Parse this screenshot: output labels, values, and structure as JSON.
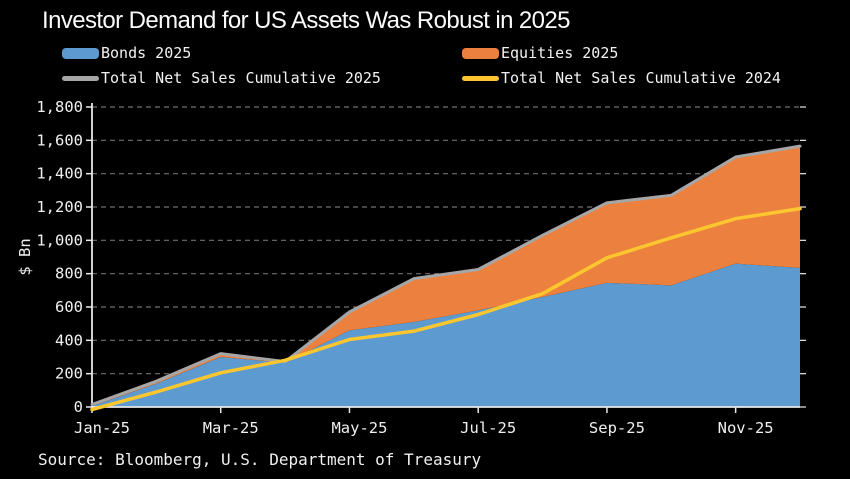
{
  "title": "Investor Demand for US Assets Was Robust in 2025",
  "source": "Source: Bloomberg, U.S. Department of Treasury",
  "colors": {
    "background": "#000000",
    "bonds": "#5C9AD0",
    "equities": "#EC813F",
    "total_2025_line": "#A6A6A6",
    "total_2024_line": "#FCC62E",
    "grid": "#6f6f6f",
    "axis": "#e8e8e8",
    "text": "#f0f0f0"
  },
  "legend": {
    "items": [
      {
        "label": "Bonds 2025",
        "color": "#5C9AD0",
        "swatch": "area"
      },
      {
        "label": "Equities 2025",
        "color": "#EC813F",
        "swatch": "area"
      },
      {
        "label": "Total Net Sales Cumulative 2025",
        "color": "#A6A6A6",
        "swatch": "line"
      },
      {
        "label": "Total Net Sales Cumulative 2024",
        "color": "#FCC62E",
        "swatch": "line"
      }
    ]
  },
  "chart_data": {
    "type": "area",
    "title": "Investor Demand for US Assets Was Robust in 2025",
    "xlabel": "",
    "ylabel": "$ Bn",
    "ylim": [
      0,
      1800
    ],
    "y_tick_step": 200,
    "y_tick_labels": [
      "0",
      "200",
      "400",
      "600",
      "800",
      "1,000",
      "1,200",
      "1,400",
      "1,600",
      "1,800"
    ],
    "x_tick_labels": [
      "Jan-25",
      "Mar-25",
      "May-25",
      "Jul-25",
      "Sep-25",
      "Nov-25"
    ],
    "x": [
      "Jan-25",
      "Feb-25",
      "Mar-25",
      "Apr-25",
      "May-25",
      "Jun-25",
      "Jul-25",
      "Aug-25",
      "Sep-25",
      "Oct-25",
      "Nov-25",
      "Dec-25"
    ],
    "grid": "horizontal-dashed",
    "legend_position": "top",
    "stacked_areas": [
      {
        "name": "Bonds 2025",
        "color": "#5C9AD0",
        "values": [
          5,
          140,
          300,
          265,
          460,
          510,
          580,
          660,
          745,
          730,
          860,
          835
        ]
      },
      {
        "name": "Equities 2025",
        "color": "#EC813F",
        "values": [
          10,
          15,
          20,
          7,
          110,
          260,
          245,
          370,
          480,
          540,
          640,
          730
        ]
      }
    ],
    "lines": [
      {
        "name": "Total Net Sales Cumulative 2025",
        "color": "#A6A6A6",
        "width": 3,
        "values": [
          15,
          155,
          320,
          272,
          570,
          770,
          825,
          1030,
          1225,
          1270,
          1500,
          1565
        ]
      },
      {
        "name": "Total Net Sales Cumulative 2024",
        "color": "#FCC62E",
        "width": 3.5,
        "values": [
          -15,
          90,
          205,
          280,
          405,
          455,
          555,
          680,
          895,
          1015,
          1130,
          1190
        ]
      }
    ]
  }
}
